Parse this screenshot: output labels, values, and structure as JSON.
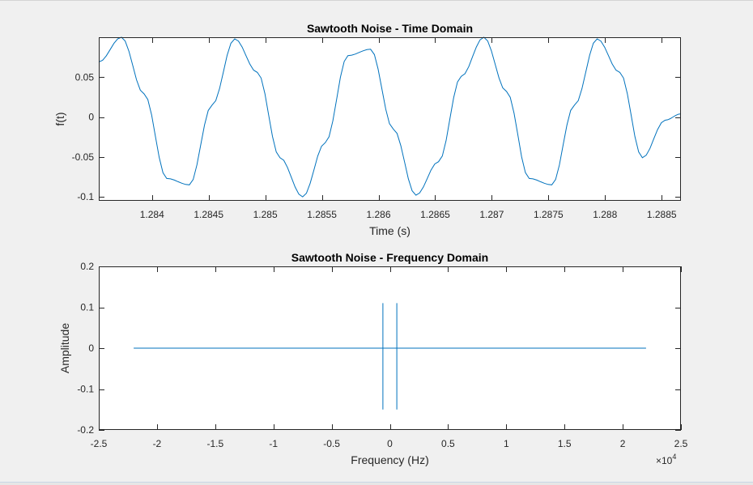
{
  "colors": {
    "line": "#0072bd",
    "axes": "#262626",
    "axes_bg": "#ffffff",
    "figure_bg": "#f0f0f0"
  },
  "chart_data": [
    {
      "type": "line",
      "title": "Sawtooth Noise - Time Domain",
      "xlabel": "Time (s)",
      "ylabel": "f(t)",
      "xlim": [
        1.28353,
        1.28867
      ],
      "ylim": [
        -0.105,
        0.1
      ],
      "xticks": [
        1.284,
        1.2845,
        1.285,
        1.2855,
        1.286,
        1.2865,
        1.287,
        1.2875,
        1.288,
        1.2885
      ],
      "xtick_labels": [
        "1.284",
        "1.2845",
        "1.285",
        "1.2855",
        "1.286",
        "1.2865",
        "1.287",
        "1.2875",
        "1.288",
        "1.2885"
      ],
      "yticks": [
        0.05,
        0,
        -0.05,
        -0.1
      ],
      "ytick_labels": [
        "0.05",
        "0",
        "-0.05",
        "-0.1"
      ],
      "exponent_label": "",
      "grid": false,
      "series": [
        {
          "x": [
            1.28353,
            1.28373,
            1.28393,
            1.28413,
            1.28433,
            1.28453,
            1.28473,
            1.28493,
            1.28513,
            1.28533,
            1.28553,
            1.28573,
            1.28593,
            1.28613,
            1.28633,
            1.28653,
            1.28673,
            1.28693,
            1.28713,
            1.28733,
            1.28753,
            1.28773,
            1.28793,
            1.28813,
            1.28833,
            1.28853,
            1.28867
          ],
          "y": [
            0.069,
            0.1,
            0.029,
            -0.077,
            -0.085,
            0.015,
            0.098,
            0.056,
            -0.051,
            -0.1,
            -0.032,
            0.077,
            0.085,
            -0.015,
            -0.098,
            -0.056,
            0.051,
            0.1,
            0.032,
            -0.077,
            -0.085,
            0.015,
            0.098,
            0.056,
            -0.051,
            -0.004,
            0.004
          ]
        }
      ]
    },
    {
      "type": "line",
      "title": "Sawtooth Noise - Frequency Domain",
      "xlabel": "Frequency (Hz)",
      "ylabel": "Amplitude",
      "xlim": [
        -2.5,
        2.5
      ],
      "ylim": [
        -0.2,
        0.2
      ],
      "xticks": [
        -2.5,
        -2,
        -1.5,
        -1,
        -0.5,
        0,
        0.5,
        1,
        1.5,
        2,
        2.5
      ],
      "xtick_labels": [
        "-2.5",
        "-2",
        "-1.5",
        "-1",
        "-0.5",
        "0",
        "0.5",
        "1",
        "1.5",
        "2",
        "2.5"
      ],
      "yticks": [
        0.2,
        0.1,
        0,
        -0.1,
        -0.2
      ],
      "ytick_labels": [
        "0.2",
        "0.1",
        "0",
        "-0.1",
        "-0.2"
      ],
      "exponent_label": "×10",
      "exponent_power": "4",
      "grid": false,
      "series": [
        {
          "x": [
            -2.2,
            -0.06,
            -0.06,
            -0.06,
            -0.06,
            0.06,
            0.06,
            0.06,
            0.06,
            2.2
          ],
          "y": [
            0,
            0,
            0.11,
            -0.15,
            0,
            0,
            0.11,
            -0.15,
            0,
            0
          ]
        }
      ]
    }
  ]
}
